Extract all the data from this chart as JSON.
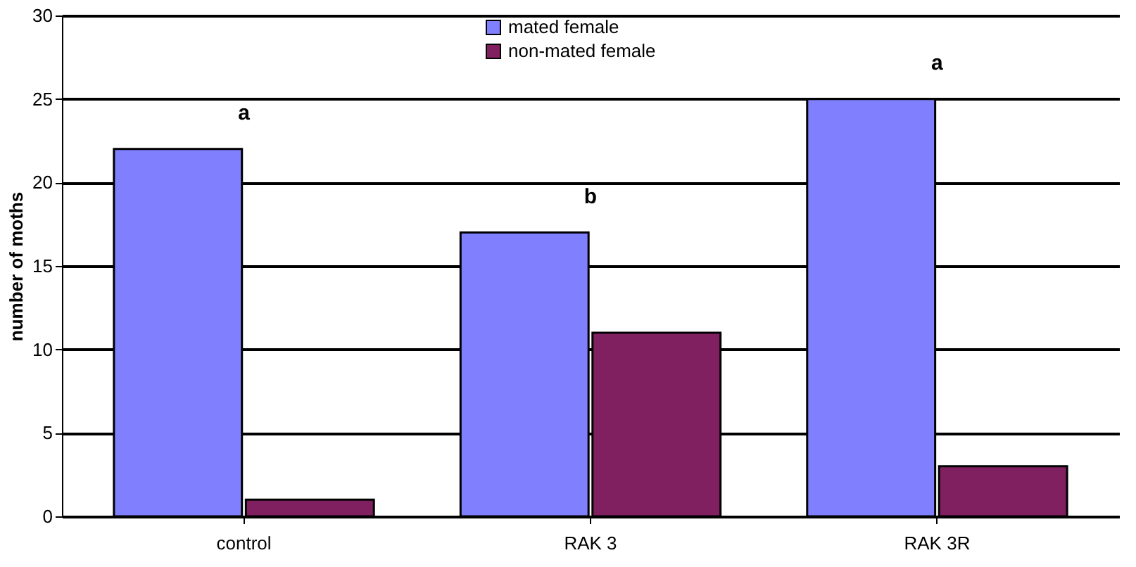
{
  "chart_data": {
    "type": "bar",
    "ylabel": "number of moths",
    "categories": [
      "control",
      "RAK 3",
      "RAK 3R"
    ],
    "series": [
      {
        "name": "mated female",
        "color": "#8080ff",
        "values": [
          22,
          17,
          25
        ]
      },
      {
        "name": "non-mated female",
        "color": "#802060",
        "values": [
          1,
          11,
          3
        ]
      }
    ],
    "ylim": [
      0,
      30
    ],
    "yticks": [
      0,
      5,
      10,
      15,
      20,
      25,
      30
    ],
    "grid": "y",
    "legend": "top",
    "annotations": [
      "a",
      "b",
      "a"
    ]
  }
}
